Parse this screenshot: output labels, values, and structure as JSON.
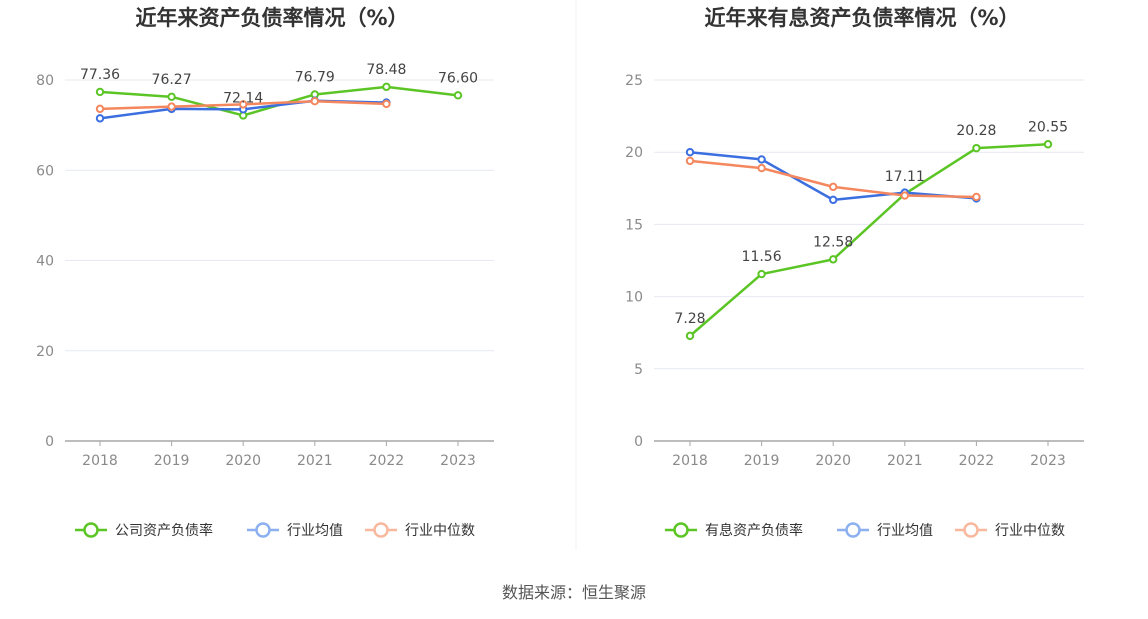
{
  "source": "数据来源：恒生聚源",
  "colors": {
    "company": "#5cc526",
    "avg": "#3b6fe0",
    "median": "#f4875e",
    "avg_legend": "#8cb0f0",
    "median_legend": "#f8b89e",
    "grid": "#e6e9f2",
    "axis": "#a7a7a7"
  },
  "chart_data": [
    {
      "type": "line",
      "title": "近年来资产负债率情况（%）",
      "categories": [
        "2018",
        "2019",
        "2020",
        "2021",
        "2022",
        "2023"
      ],
      "ylim": [
        0,
        80
      ],
      "yticks": [
        0,
        20,
        40,
        60,
        80
      ],
      "series": [
        {
          "name": "公司资产负债率",
          "key": "company",
          "values": [
            77.36,
            76.27,
            72.14,
            76.79,
            78.48,
            76.6
          ],
          "labels": [
            "77.36",
            "76.27",
            "72.14",
            "76.79",
            "78.48",
            "76.60"
          ]
        },
        {
          "name": "行业均值",
          "key": "avg",
          "values": [
            71.5,
            73.6,
            73.5,
            75.4,
            75.0,
            null
          ]
        },
        {
          "name": "行业中位数",
          "key": "median",
          "values": [
            73.6,
            74.1,
            74.6,
            75.3,
            74.7,
            null
          ]
        }
      ]
    },
    {
      "type": "line",
      "title": "近年来有息资产负债率情况（%）",
      "categories": [
        "2018",
        "2019",
        "2020",
        "2021",
        "2022",
        "2023"
      ],
      "ylim": [
        0,
        25
      ],
      "yticks": [
        0,
        5,
        10,
        15,
        20,
        25
      ],
      "series": [
        {
          "name": "有息资产负债率",
          "key": "company",
          "values": [
            7.28,
            11.56,
            12.58,
            17.11,
            20.28,
            20.55
          ],
          "labels": [
            "7.28",
            "11.56",
            "12.58",
            "17.11",
            "20.28",
            "20.55"
          ]
        },
        {
          "name": "行业均值",
          "key": "avg",
          "values": [
            20.0,
            19.5,
            16.7,
            17.2,
            16.8,
            null
          ]
        },
        {
          "name": "行业中位数",
          "key": "median",
          "values": [
            19.4,
            18.9,
            17.6,
            17.0,
            16.9,
            null
          ]
        }
      ]
    }
  ]
}
